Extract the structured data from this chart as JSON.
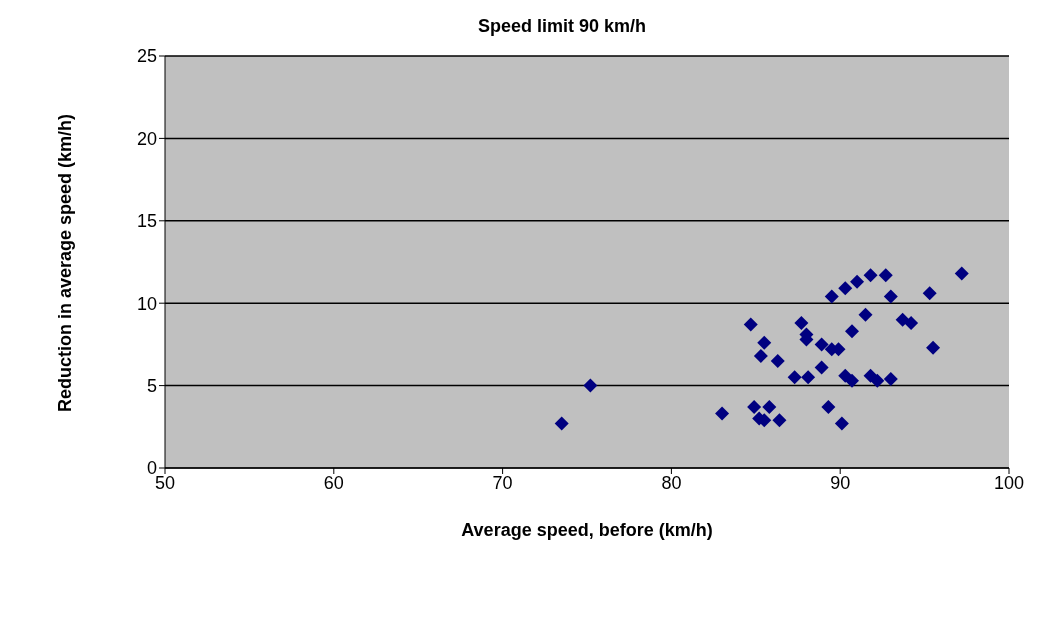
{
  "chart_data": {
    "type": "scatter",
    "title": "Speed limit 90 km/h",
    "xlabel": "Average speed, before (km/h)",
    "ylabel": "Reduction in average speed (km/h)",
    "x": [
      73.5,
      75.2,
      83.0,
      84.7,
      85.5,
      85.3,
      86.3,
      84.9,
      85.8,
      85.2,
      85.5,
      86.4,
      87.7,
      88.0,
      88.0,
      87.3,
      88.1,
      88.9,
      88.9,
      89.3,
      89.5,
      89.5,
      89.9,
      90.1,
      90.3,
      90.3,
      90.7,
      90.7,
      91.0,
      91.5,
      91.8,
      91.8,
      92.2,
      92.7,
      93.0,
      93.0,
      93.7,
      94.2,
      95.3,
      95.5,
      97.2
    ],
    "series": [
      {
        "color": "#000080",
        "values": [
          2.7,
          5.0,
          3.3,
          8.7,
          7.6,
          6.8,
          6.5,
          3.7,
          3.7,
          3.0,
          2.9,
          2.9,
          8.8,
          8.1,
          7.8,
          5.5,
          5.5,
          7.5,
          6.1,
          3.7,
          10.4,
          7.2,
          7.2,
          2.7,
          10.9,
          5.6,
          5.3,
          8.3,
          11.3,
          9.3,
          11.7,
          5.6,
          5.3,
          11.7,
          10.4,
          5.4,
          9.0,
          8.8,
          10.6,
          7.3,
          11.8
        ]
      }
    ],
    "xlim": [
      50,
      100
    ],
    "xticks": [
      50,
      60,
      70,
      80,
      90,
      100
    ],
    "ylim": [
      0,
      25
    ],
    "yticks": [
      0,
      5,
      10,
      15,
      20,
      25
    ],
    "grid": "y",
    "legend": false,
    "marker": "diamond"
  }
}
